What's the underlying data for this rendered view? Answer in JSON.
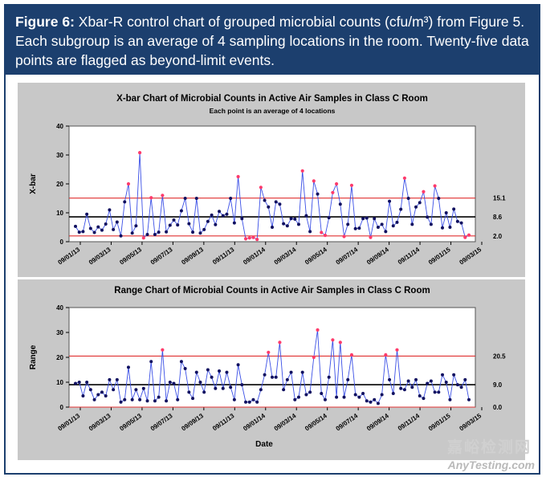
{
  "caption": {
    "label": "Figure 6:",
    "text": "Xbar-R control chart of grouped microbial counts (cfu/m³) from Figure 5. Each subgroup is an average of 4 sampling locations in the room. Twenty-five data points are flagged as beyond-limit events."
  },
  "watermark": {
    "brand": "AnyTesting.com",
    "cn": "嘉峪检测网"
  },
  "colors": {
    "header_bg": "#1c3f6e",
    "panel_bg": "#c8c8c8",
    "series": "#3a4fe6",
    "limit": "#e03030",
    "flag": "#ff3b6b",
    "center": "#000000"
  },
  "chart_data": [
    {
      "type": "line",
      "title": "X-bar Chart of Microbial Counts in Active Air Samples in Class C Room",
      "subtitle": "Each point is an average of 4 locations",
      "ylabel": "X-bar",
      "xlabel": "",
      "ylim": [
        0,
        40
      ],
      "yticks": [
        "0",
        "10",
        "20",
        "30",
        "40"
      ],
      "xtick_labels": [
        "09/01/13",
        "09/03/13",
        "09/05/13",
        "09/07/13",
        "09/09/13",
        "09/11/13",
        "09/01/14",
        "09/03/14",
        "09/05/14",
        "09/07/14",
        "09/09/14",
        "09/11/14",
        "09/01/15",
        "09/03/15"
      ],
      "ucl": 15.1,
      "center": 8.6,
      "lcl": 2.0,
      "limit_labels": [
        "15.1",
        "8.6",
        "2.0"
      ],
      "values": [
        5.3,
        3.3,
        3.5,
        9.5,
        4.6,
        3.2,
        5.1,
        4.0,
        6.1,
        11.0,
        4.2,
        6.8,
        2.0,
        13.8,
        20.0,
        3.0,
        5.5,
        30.8,
        1.3,
        2.5,
        15.2,
        2.5,
        3.3,
        16.0,
        3.4,
        5.7,
        7.5,
        5.8,
        10.7,
        15.0,
        6.2,
        3.3,
        15.0,
        3.0,
        4.2,
        7.0,
        9.2,
        5.9,
        10.5,
        9.0,
        9.5,
        15.0,
        6.5,
        22.5,
        8.0,
        1.0,
        1.3,
        1.5,
        0.8,
        18.8,
        14.3,
        12.0,
        5.0,
        13.8,
        13.0,
        6.2,
        5.5,
        8.0,
        7.8,
        6.0,
        24.5,
        9.0,
        3.5,
        21.0,
        16.5,
        3.2,
        2.2,
        8.3,
        17.0,
        20.0,
        13.0,
        1.8,
        6.0,
        19.5,
        4.5,
        4.7,
        8.0,
        8.2,
        1.5,
        8.0,
        5.0,
        6.0,
        3.5,
        14.0,
        5.5,
        6.7,
        11.2,
        22.0,
        15.0,
        6.0,
        12.0,
        13.5,
        17.3,
        8.5,
        6.0,
        19.3,
        15.0,
        4.8,
        10.0,
        5.0,
        11.3,
        7.0,
        6.5,
        1.5,
        2.3
      ],
      "flagged_indices": [
        14,
        17,
        18,
        20,
        23,
        43,
        45,
        46,
        47,
        48,
        49,
        60,
        63,
        65,
        66,
        68,
        69,
        71,
        73,
        78,
        87,
        92,
        95,
        103,
        104
      ]
    },
    {
      "type": "line",
      "title": "Range Chart of Microbial Counts in Active Air Samples in Class C Room",
      "ylabel": "Range",
      "xlabel": "Date",
      "ylim": [
        0,
        40
      ],
      "yticks": [
        "0",
        "10",
        "20",
        "30",
        "40"
      ],
      "xtick_labels": [
        "09/01/13",
        "09/03/13",
        "09/05/13",
        "09/07/13",
        "09/09/13",
        "09/11/13",
        "09/01/14",
        "09/03/14",
        "09/05/14",
        "09/07/14",
        "09/09/14",
        "09/11/14",
        "09/01/15",
        "09/03/15"
      ],
      "ucl": 20.5,
      "center": 9.0,
      "lcl": 0.0,
      "limit_labels": [
        "20.5",
        "9.0",
        "0.0"
      ],
      "values": [
        9.5,
        10.0,
        4.5,
        10.0,
        7.0,
        3.0,
        5.0,
        6.0,
        4.5,
        11.0,
        7.0,
        11.0,
        2.0,
        3.0,
        16.0,
        3.0,
        7.0,
        3.0,
        7.5,
        2.5,
        18.3,
        2.5,
        4.0,
        23.0,
        2.5,
        10.0,
        9.5,
        3.0,
        18.3,
        15.5,
        6.0,
        3.5,
        14.0,
        10.0,
        6.0,
        15.0,
        12.0,
        7.5,
        14.5,
        7.5,
        14.0,
        8.0,
        3.0,
        17.0,
        9.0,
        2.0,
        2.0,
        3.0,
        2.0,
        7.0,
        13.0,
        22.0,
        12.0,
        12.0,
        26.0,
        7.0,
        11.0,
        14.0,
        3.0,
        4.0,
        14.0,
        5.0,
        6.0,
        20.0,
        31.0,
        5.5,
        3.0,
        12.0,
        27.0,
        4.0,
        26.0,
        4.0,
        11.0,
        21.0,
        5.0,
        4.0,
        5.5,
        2.5,
        2.0,
        3.0,
        1.5,
        5.0,
        21.0,
        11.0,
        5.5,
        23.0,
        7.5,
        7.0,
        10.5,
        8.0,
        11.0,
        4.5,
        3.5,
        9.5,
        10.5,
        6.0,
        6.0,
        13.0,
        10.0,
        3.0,
        13.0,
        9.0,
        8.0,
        11.0,
        3.0
      ],
      "flagged_indices": [
        23,
        51,
        54,
        63,
        64,
        68,
        70,
        73,
        82,
        85
      ]
    }
  ]
}
